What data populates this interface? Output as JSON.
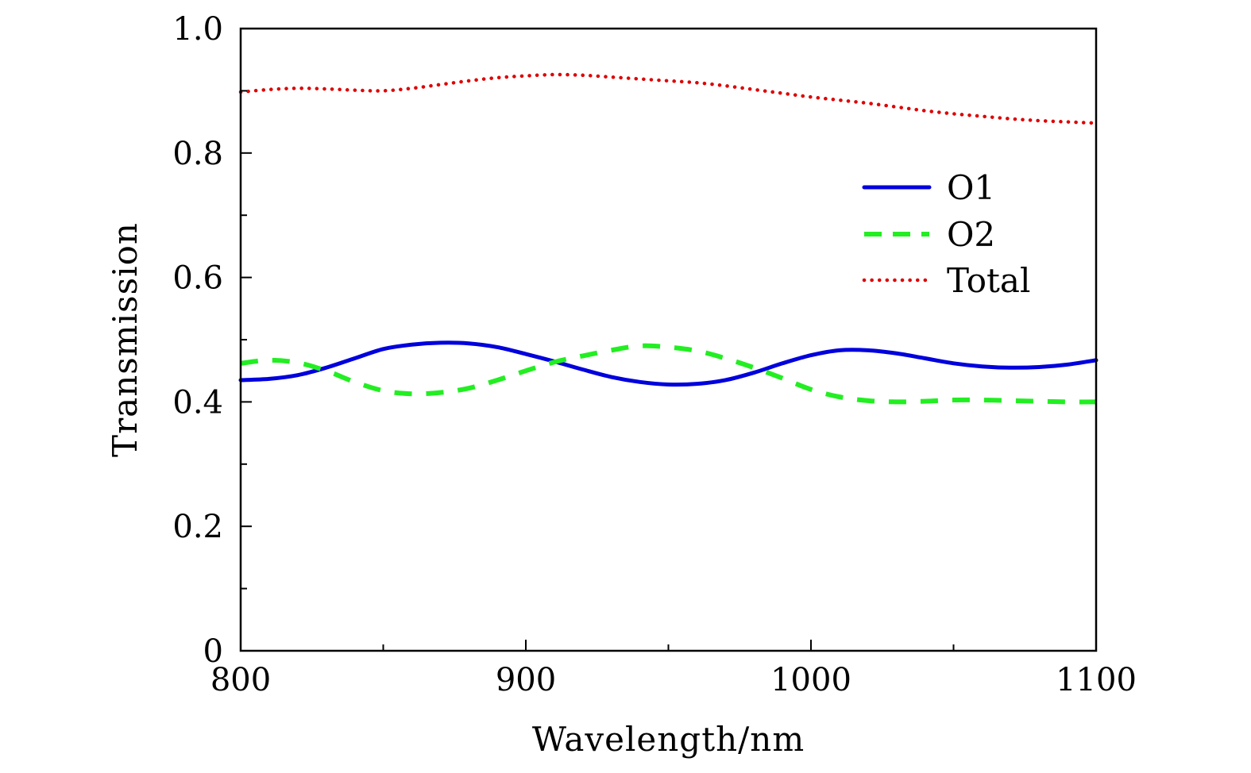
{
  "chart_data": {
    "type": "line",
    "title": "",
    "xlabel": "Wavelength/nm",
    "ylabel": "Transmission",
    "xlim": [
      800,
      1100
    ],
    "ylim": [
      0,
      1.0
    ],
    "xticks": [
      800,
      900,
      1000,
      1100
    ],
    "xtick_labels": [
      "800",
      "900",
      "1000",
      "1100"
    ],
    "yticks": [
      0,
      0.2,
      0.4,
      0.6,
      0.8,
      1.0
    ],
    "ytick_labels": [
      "0",
      "0.2",
      "0.4",
      "0.6",
      "0.8",
      "1.0"
    ],
    "grid": false,
    "legend_position": "upper-right",
    "x": [
      800,
      810,
      820,
      830,
      840,
      850,
      860,
      870,
      880,
      890,
      900,
      910,
      920,
      930,
      940,
      950,
      960,
      970,
      980,
      990,
      1000,
      1010,
      1020,
      1030,
      1040,
      1050,
      1060,
      1070,
      1080,
      1090,
      1100
    ],
    "series": [
      {
        "name": "O1",
        "color": "#0000dd",
        "style": "solid",
        "values": [
          0.435,
          0.437,
          0.443,
          0.455,
          0.47,
          0.485,
          0.492,
          0.495,
          0.494,
          0.488,
          0.477,
          0.465,
          0.452,
          0.44,
          0.432,
          0.428,
          0.429,
          0.435,
          0.447,
          0.462,
          0.475,
          0.483,
          0.483,
          0.478,
          0.47,
          0.462,
          0.457,
          0.455,
          0.456,
          0.46,
          0.467
        ]
      },
      {
        "name": "O2",
        "color": "#22ee22",
        "style": "dashed",
        "values": [
          0.462,
          0.467,
          0.463,
          0.45,
          0.432,
          0.418,
          0.413,
          0.415,
          0.422,
          0.435,
          0.45,
          0.464,
          0.474,
          0.483,
          0.49,
          0.488,
          0.482,
          0.47,
          0.455,
          0.438,
          0.42,
          0.408,
          0.402,
          0.4,
          0.401,
          0.403,
          0.403,
          0.402,
          0.401,
          0.4,
          0.4
        ]
      },
      {
        "name": "Total",
        "color": "#dd0000",
        "style": "dotted",
        "values": [
          0.898,
          0.902,
          0.904,
          0.903,
          0.901,
          0.9,
          0.904,
          0.91,
          0.916,
          0.921,
          0.924,
          0.926,
          0.925,
          0.922,
          0.919,
          0.916,
          0.913,
          0.908,
          0.902,
          0.896,
          0.89,
          0.885,
          0.88,
          0.874,
          0.868,
          0.863,
          0.859,
          0.855,
          0.852,
          0.85,
          0.848
        ]
      }
    ]
  }
}
